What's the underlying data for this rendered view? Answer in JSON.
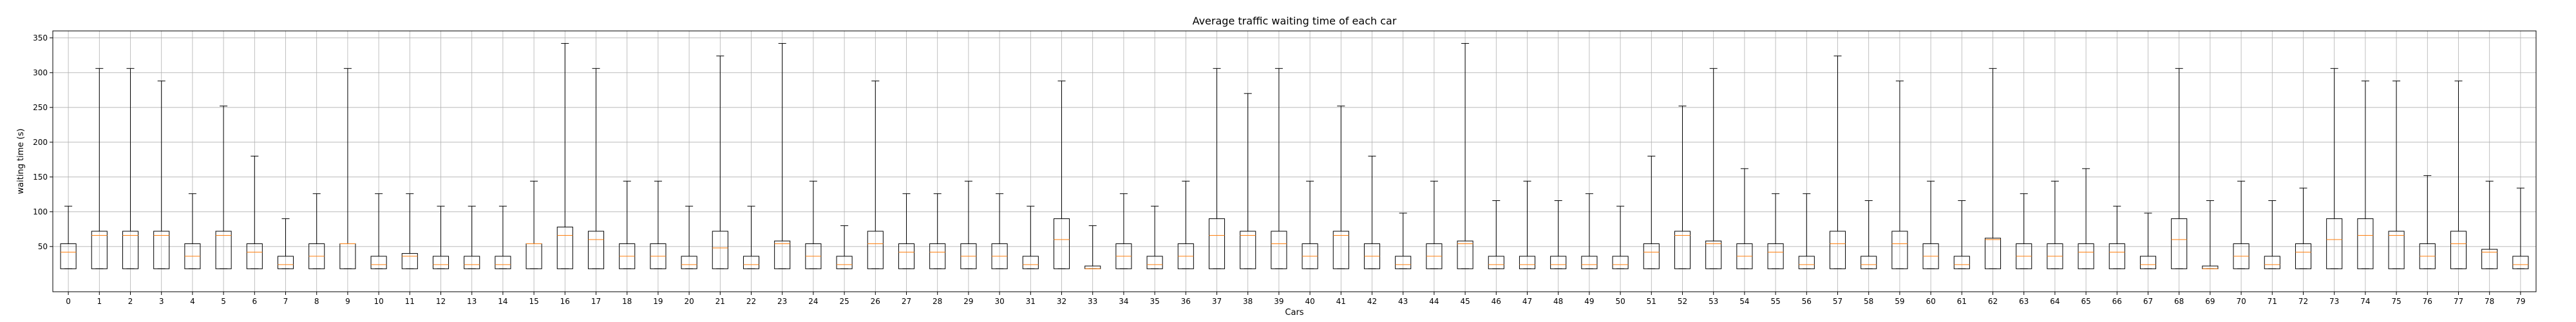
{
  "chart_data": {
    "type": "boxplot",
    "title": "Average traffic waiting time of each car",
    "xlabel": "Cars",
    "ylabel": "waiting time (s)",
    "ylim": [
      -15,
      360
    ],
    "yticks": [
      50,
      100,
      150,
      200,
      250,
      300,
      350
    ],
    "grid": true,
    "categories": [
      "0",
      "1",
      "2",
      "3",
      "4",
      "5",
      "6",
      "7",
      "8",
      "9",
      "10",
      "11",
      "12",
      "13",
      "14",
      "15",
      "16",
      "17",
      "18",
      "19",
      "20",
      "21",
      "22",
      "23",
      "24",
      "25",
      "26",
      "27",
      "28",
      "29",
      "30",
      "31",
      "32",
      "33",
      "34",
      "35",
      "36",
      "37",
      "38",
      "39",
      "40",
      "41",
      "42",
      "43",
      "44",
      "45",
      "46",
      "47",
      "48",
      "49",
      "50",
      "51",
      "52",
      "53",
      "54",
      "55",
      "56",
      "57",
      "58",
      "59",
      "60",
      "61",
      "62",
      "63",
      "64",
      "65",
      "66",
      "67",
      "68",
      "69",
      "70",
      "71",
      "72",
      "73",
      "74",
      "75",
      "76",
      "77",
      "78",
      "79"
    ],
    "boxes": [
      {
        "min": 18,
        "q1": 18,
        "median": 42,
        "q3": 54,
        "max": 108
      },
      {
        "min": 18,
        "q1": 18,
        "median": 66,
        "q3": 72,
        "max": 306
      },
      {
        "min": 18,
        "q1": 18,
        "median": 66,
        "q3": 72,
        "max": 306
      },
      {
        "min": 18,
        "q1": 18,
        "median": 66,
        "q3": 72,
        "max": 288
      },
      {
        "min": 18,
        "q1": 18,
        "median": 36,
        "q3": 54,
        "max": 126
      },
      {
        "min": 18,
        "q1": 18,
        "median": 66,
        "q3": 72,
        "max": 252
      },
      {
        "min": 18,
        "q1": 18,
        "median": 42,
        "q3": 54,
        "max": 180
      },
      {
        "min": 18,
        "q1": 18,
        "median": 24,
        "q3": 36,
        "max": 90
      },
      {
        "min": 18,
        "q1": 18,
        "median": 36,
        "q3": 54,
        "max": 126
      },
      {
        "min": 18,
        "q1": 18,
        "median": 54,
        "q3": 54,
        "max": 306
      },
      {
        "min": 18,
        "q1": 18,
        "median": 24,
        "q3": 36,
        "max": 126
      },
      {
        "min": 18,
        "q1": 18,
        "median": 36,
        "q3": 40,
        "max": 126
      },
      {
        "min": 18,
        "q1": 18,
        "median": 24,
        "q3": 36,
        "max": 108
      },
      {
        "min": 18,
        "q1": 18,
        "median": 24,
        "q3": 36,
        "max": 108
      },
      {
        "min": 18,
        "q1": 18,
        "median": 24,
        "q3": 36,
        "max": 108
      },
      {
        "min": 18,
        "q1": 18,
        "median": 54,
        "q3": 54,
        "max": 144
      },
      {
        "min": 18,
        "q1": 18,
        "median": 66,
        "q3": 78,
        "max": 342
      },
      {
        "min": 18,
        "q1": 18,
        "median": 60,
        "q3": 72,
        "max": 306
      },
      {
        "min": 18,
        "q1": 18,
        "median": 36,
        "q3": 54,
        "max": 144
      },
      {
        "min": 18,
        "q1": 18,
        "median": 36,
        "q3": 54,
        "max": 144
      },
      {
        "min": 18,
        "q1": 18,
        "median": 24,
        "q3": 36,
        "max": 108
      },
      {
        "min": 18,
        "q1": 18,
        "median": 48,
        "q3": 72,
        "max": 324
      },
      {
        "min": 18,
        "q1": 18,
        "median": 24,
        "q3": 36,
        "max": 108
      },
      {
        "min": 18,
        "q1": 18,
        "median": 54,
        "q3": 58,
        "max": 342
      },
      {
        "min": 18,
        "q1": 18,
        "median": 36,
        "q3": 54,
        "max": 144
      },
      {
        "min": 18,
        "q1": 18,
        "median": 24,
        "q3": 36,
        "max": 80
      },
      {
        "min": 18,
        "q1": 18,
        "median": 54,
        "q3": 72,
        "max": 288
      },
      {
        "min": 18,
        "q1": 18,
        "median": 42,
        "q3": 54,
        "max": 126
      },
      {
        "min": 18,
        "q1": 18,
        "median": 42,
        "q3": 54,
        "max": 126
      },
      {
        "min": 18,
        "q1": 18,
        "median": 36,
        "q3": 54,
        "max": 144
      },
      {
        "min": 18,
        "q1": 18,
        "median": 36,
        "q3": 54,
        "max": 126
      },
      {
        "min": 18,
        "q1": 18,
        "median": 24,
        "q3": 36,
        "max": 108
      },
      {
        "min": 18,
        "q1": 18,
        "median": 60,
        "q3": 90,
        "max": 288
      },
      {
        "min": 18,
        "q1": 18,
        "median": 18,
        "q3": 22,
        "max": 80
      },
      {
        "min": 18,
        "q1": 18,
        "median": 36,
        "q3": 54,
        "max": 126
      },
      {
        "min": 18,
        "q1": 18,
        "median": 24,
        "q3": 36,
        "max": 108
      },
      {
        "min": 18,
        "q1": 18,
        "median": 36,
        "q3": 54,
        "max": 144
      },
      {
        "min": 18,
        "q1": 18,
        "median": 66,
        "q3": 90,
        "max": 306
      },
      {
        "min": 18,
        "q1": 18,
        "median": 66,
        "q3": 72,
        "max": 270
      },
      {
        "min": 18,
        "q1": 18,
        "median": 54,
        "q3": 72,
        "max": 306
      },
      {
        "min": 18,
        "q1": 18,
        "median": 36,
        "q3": 54,
        "max": 144
      },
      {
        "min": 18,
        "q1": 18,
        "median": 66,
        "q3": 72,
        "max": 252
      },
      {
        "min": 18,
        "q1": 18,
        "median": 36,
        "q3": 54,
        "max": 180
      },
      {
        "min": 18,
        "q1": 18,
        "median": 24,
        "q3": 36,
        "max": 98
      },
      {
        "min": 18,
        "q1": 18,
        "median": 36,
        "q3": 54,
        "max": 144
      },
      {
        "min": 18,
        "q1": 18,
        "median": 54,
        "q3": 58,
        "max": 342
      },
      {
        "min": 18,
        "q1": 18,
        "median": 24,
        "q3": 36,
        "max": 116
      },
      {
        "min": 18,
        "q1": 18,
        "median": 24,
        "q3": 36,
        "max": 144
      },
      {
        "min": 18,
        "q1": 18,
        "median": 24,
        "q3": 36,
        "max": 116
      },
      {
        "min": 18,
        "q1": 18,
        "median": 24,
        "q3": 36,
        "max": 126
      },
      {
        "min": 18,
        "q1": 18,
        "median": 24,
        "q3": 36,
        "max": 108
      },
      {
        "min": 18,
        "q1": 18,
        "median": 42,
        "q3": 54,
        "max": 180
      },
      {
        "min": 18,
        "q1": 18,
        "median": 66,
        "q3": 72,
        "max": 252
      },
      {
        "min": 18,
        "q1": 18,
        "median": 54,
        "q3": 58,
        "max": 306
      },
      {
        "min": 18,
        "q1": 18,
        "median": 36,
        "q3": 54,
        "max": 162
      },
      {
        "min": 18,
        "q1": 18,
        "median": 42,
        "q3": 54,
        "max": 126
      },
      {
        "min": 18,
        "q1": 18,
        "median": 24,
        "q3": 36,
        "max": 126
      },
      {
        "min": 18,
        "q1": 18,
        "median": 54,
        "q3": 72,
        "max": 324
      },
      {
        "min": 18,
        "q1": 18,
        "median": 24,
        "q3": 36,
        "max": 116
      },
      {
        "min": 18,
        "q1": 18,
        "median": 54,
        "q3": 72,
        "max": 288
      },
      {
        "min": 18,
        "q1": 18,
        "median": 36,
        "q3": 54,
        "max": 144
      },
      {
        "min": 18,
        "q1": 18,
        "median": 24,
        "q3": 36,
        "max": 116
      },
      {
        "min": 18,
        "q1": 18,
        "median": 60,
        "q3": 62,
        "max": 306
      },
      {
        "min": 18,
        "q1": 18,
        "median": 36,
        "q3": 54,
        "max": 126
      },
      {
        "min": 18,
        "q1": 18,
        "median": 36,
        "q3": 54,
        "max": 144
      },
      {
        "min": 18,
        "q1": 18,
        "median": 42,
        "q3": 54,
        "max": 162
      },
      {
        "min": 18,
        "q1": 18,
        "median": 42,
        "q3": 54,
        "max": 108
      },
      {
        "min": 18,
        "q1": 18,
        "median": 24,
        "q3": 36,
        "max": 98
      },
      {
        "min": 18,
        "q1": 18,
        "median": 60,
        "q3": 90,
        "max": 306
      },
      {
        "min": 18,
        "q1": 18,
        "median": 18,
        "q3": 22,
        "max": 116
      },
      {
        "min": 18,
        "q1": 18,
        "median": 36,
        "q3": 54,
        "max": 144
      },
      {
        "min": 18,
        "q1": 18,
        "median": 24,
        "q3": 36,
        "max": 116
      },
      {
        "min": 18,
        "q1": 18,
        "median": 42,
        "q3": 54,
        "max": 134
      },
      {
        "min": 18,
        "q1": 18,
        "median": 60,
        "q3": 90,
        "max": 306
      },
      {
        "min": 18,
        "q1": 18,
        "median": 66,
        "q3": 90,
        "max": 288
      },
      {
        "min": 18,
        "q1": 18,
        "median": 66,
        "q3": 72,
        "max": 288
      },
      {
        "min": 18,
        "q1": 18,
        "median": 36,
        "q3": 54,
        "max": 152
      },
      {
        "min": 18,
        "q1": 18,
        "median": 54,
        "q3": 72,
        "max": 288
      },
      {
        "min": 18,
        "q1": 18,
        "median": 42,
        "q3": 46,
        "max": 144
      },
      {
        "min": 18,
        "q1": 18,
        "median": 24,
        "q3": 36,
        "max": 134
      }
    ],
    "colors": {
      "box": "#000000",
      "median": "#ff7f0e",
      "grid": "#b0b0b0"
    }
  }
}
